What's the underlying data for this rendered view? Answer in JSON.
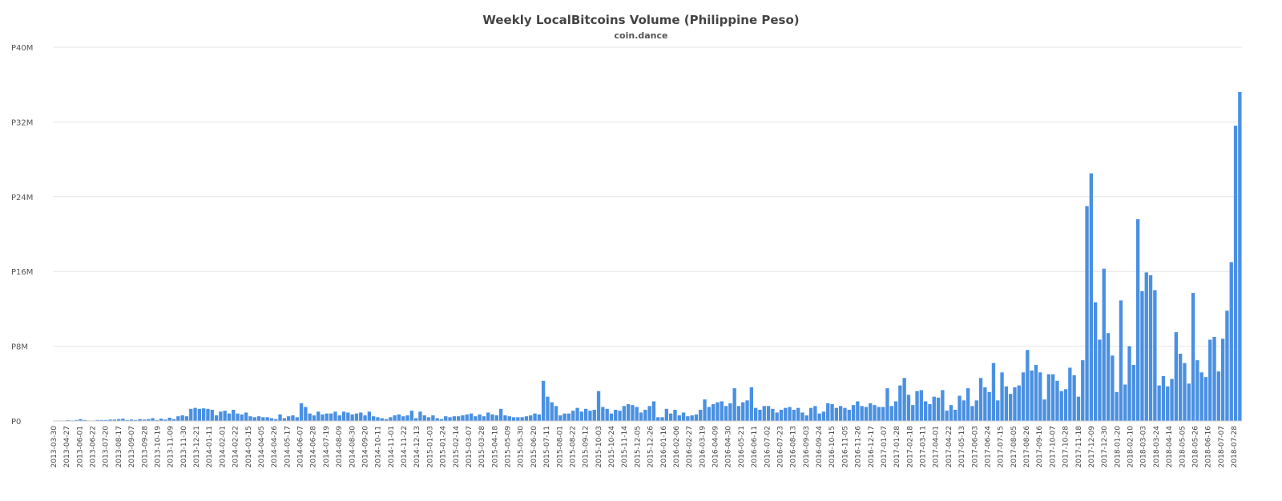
{
  "title": "Weekly LocalBitcoins Volume (Philippine Peso)",
  "subtitle": "coin.dance",
  "chart_data": {
    "type": "bar",
    "title": "Weekly LocalBitcoins Volume (Philippine Peso)",
    "subtitle": "coin.dance",
    "xlabel": "",
    "ylabel": "",
    "ylim": [
      0,
      40000000
    ],
    "y_ticks": [
      {
        "value": 0,
        "label": "P0"
      },
      {
        "value": 8000000,
        "label": "P8M"
      },
      {
        "value": 16000000,
        "label": "P16M"
      },
      {
        "value": 24000000,
        "label": "P24M"
      },
      {
        "value": 32000000,
        "label": "P32M"
      },
      {
        "value": 40000000,
        "label": "P40M"
      }
    ],
    "grid": "horizontal",
    "bar_color": "#4a90e2",
    "x_tick_labels": [
      "2013-03-30",
      "2013-04-27",
      "2013-06-01",
      "2013-06-22",
      "2013-07-20",
      "2013-08-17",
      "2013-09-07",
      "2013-09-28",
      "2013-10-19",
      "2013-11-09",
      "2013-11-30",
      "2013-12-21",
      "2014-01-11",
      "2014-02-01",
      "2014-02-22",
      "2014-03-15",
      "2014-04-05",
      "2014-04-26",
      "2014-05-17",
      "2014-06-07",
      "2014-06-28",
      "2014-07-19",
      "2014-08-09",
      "2014-08-30",
      "2014-09-20",
      "2014-10-11",
      "2014-11-01",
      "2014-11-22",
      "2014-12-13",
      "2015-01-03",
      "2015-01-24",
      "2015-02-14",
      "2015-03-07",
      "2015-03-28",
      "2015-04-18",
      "2015-05-09",
      "2015-05-30",
      "2015-06-20",
      "2015-07-11",
      "2015-08-01",
      "2015-08-22",
      "2015-09-12",
      "2015-10-03",
      "2015-10-24",
      "2015-11-14",
      "2015-12-05",
      "2015-12-26",
      "2016-01-16",
      "2016-02-06",
      "2016-02-27",
      "2016-03-19",
      "2016-04-09",
      "2016-04-30",
      "2016-05-21",
      "2016-06-11",
      "2016-07-02",
      "2016-07-23",
      "2016-08-13",
      "2016-09-03",
      "2016-09-24",
      "2016-10-15",
      "2016-11-05",
      "2016-11-26",
      "2016-12-17",
      "2017-01-07",
      "2017-01-28",
      "2017-02-18",
      "2017-03-11",
      "2017-04-01",
      "2017-04-22",
      "2017-05-13",
      "2017-06-03",
      "2017-06-24",
      "2017-07-15",
      "2017-08-05",
      "2017-08-26",
      "2017-09-16",
      "2017-10-07",
      "2017-10-28",
      "2017-11-18",
      "2017-12-09",
      "2017-12-30",
      "2018-01-20",
      "2018-02-10",
      "2018-03-03",
      "2018-03-24",
      "2018-04-14",
      "2018-05-05",
      "2018-05-26",
      "2018-06-16",
      "2018-07-07",
      "2018-07-28"
    ],
    "values": [
      0.02,
      0.05,
      0.05,
      0.08,
      0.06,
      0.1,
      0.2,
      0.1,
      0.05,
      0.05,
      0.1,
      0.1,
      0.1,
      0.15,
      0.15,
      0.2,
      0.25,
      0.1,
      0.15,
      0.1,
      0.2,
      0.15,
      0.2,
      0.3,
      0.1,
      0.25,
      0.15,
      0.35,
      0.2,
      0.5,
      0.6,
      0.5,
      1.3,
      1.4,
      1.3,
      1.35,
      1.3,
      1.2,
      0.6,
      1.0,
      1.1,
      0.8,
      1.2,
      0.8,
      0.7,
      0.9,
      0.5,
      0.4,
      0.5,
      0.4,
      0.4,
      0.3,
      0.2,
      0.7,
      0.3,
      0.5,
      0.6,
      0.4,
      1.9,
      1.5,
      0.8,
      0.6,
      1.0,
      0.7,
      0.8,
      0.8,
      1.0,
      0.6,
      1.0,
      0.9,
      0.7,
      0.8,
      0.9,
      0.6,
      1.0,
      0.5,
      0.4,
      0.3,
      0.2,
      0.4,
      0.6,
      0.7,
      0.5,
      0.6,
      1.1,
      0.3,
      1.0,
      0.6,
      0.4,
      0.6,
      0.3,
      0.2,
      0.5,
      0.4,
      0.5,
      0.5,
      0.6,
      0.7,
      0.8,
      0.5,
      0.7,
      0.5,
      0.9,
      0.7,
      0.6,
      1.3,
      0.6,
      0.5,
      0.4,
      0.4,
      0.4,
      0.5,
      0.6,
      0.8,
      0.7,
      4.3,
      2.6,
      2.0,
      1.6,
      0.6,
      0.8,
      0.8,
      1.1,
      1.4,
      1.0,
      1.3,
      1.1,
      1.2,
      3.2,
      1.5,
      1.3,
      0.8,
      1.2,
      1.1,
      1.6,
      1.8,
      1.7,
      1.5,
      0.9,
      1.2,
      1.6,
      2.1,
      0.4,
      0.4,
      1.3,
      0.8,
      1.2,
      0.6,
      0.9,
      0.5,
      0.6,
      0.7,
      1.2,
      2.3,
      1.5,
      1.8,
      2.0,
      2.1,
      1.6,
      1.9,
      3.5,
      1.6,
      2.0,
      2.2,
      3.6,
      1.4,
      1.2,
      1.6,
      1.6,
      1.3,
      0.9,
      1.2,
      1.4,
      1.5,
      1.2,
      1.4,
      0.9,
      0.6,
      1.4,
      1.6,
      0.8,
      1.0,
      1.9,
      1.8,
      1.4,
      1.6,
      1.4,
      1.2,
      1.7,
      2.1,
      1.6,
      1.5,
      1.9,
      1.7,
      1.5,
      1.5,
      3.5,
      1.6,
      2.1,
      3.8,
      4.6,
      2.8,
      1.7,
      3.2,
      3.3,
      2.1,
      1.8,
      2.6,
      2.5,
      3.3,
      1.1,
      1.7,
      1.2,
      2.7,
      2.2,
      3.5,
      1.6,
      2.2,
      4.6,
      3.6,
      3.1,
      6.2,
      2.2,
      5.2,
      3.7,
      2.9,
      3.6,
      3.8,
      5.2,
      7.6,
      5.4,
      6.0,
      5.2,
      2.3,
      5.0,
      5.0,
      4.3,
      3.2,
      3.4,
      5.7,
      4.9,
      2.6,
      6.5,
      23.0,
      26.5,
      12.7,
      8.7,
      16.3,
      9.4,
      7.0,
      3.1,
      12.9,
      3.9,
      8.0,
      6.0,
      21.6,
      13.9,
      15.9,
      15.6,
      14.0,
      3.8,
      4.8,
      3.7,
      4.5,
      9.5,
      7.2,
      6.2,
      4.0,
      13.7,
      6.5,
      5.2,
      4.7,
      8.7,
      9.0,
      5.3,
      8.8,
      11.8,
      17.0,
      31.6,
      35.2
    ]
  }
}
